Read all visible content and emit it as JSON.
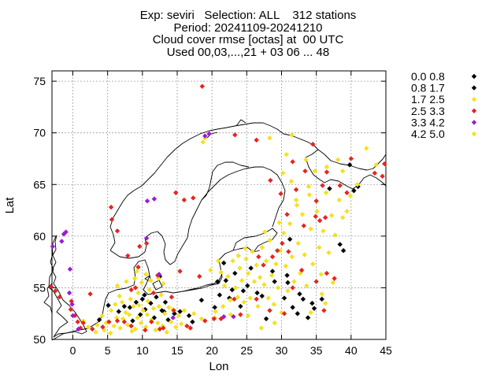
{
  "chart_data": {
    "type": "scatter",
    "title_lines": [
      "Exp: seviri   Selection: ALL    312 stations",
      "Period: 20241109-20241210",
      "Cloud cover rmse [octas] at  00 UTC",
      "Used 00,03,...,21 + 03 06 ... 48"
    ],
    "xlabel": "Lon",
    "ylabel": "Lat",
    "xlim": [
      -3,
      45
    ],
    "ylim": [
      50,
      76
    ],
    "xticks": [
      0,
      5,
      10,
      15,
      20,
      25,
      30,
      35,
      40,
      45
    ],
    "yticks": [
      50,
      55,
      60,
      65,
      70,
      75
    ],
    "grid": true,
    "legend_position": "top-right outside plot",
    "series": [
      {
        "name": "0.0 0.8",
        "color": "#000000",
        "points": [
          [
            5.1,
            53.3
          ],
          [
            8.2,
            53.1
          ],
          [
            9.1,
            53.6
          ],
          [
            10.0,
            53.9
          ],
          [
            10.4,
            52.9
          ],
          [
            11.2,
            53.5
          ],
          [
            11.7,
            52.1
          ],
          [
            12.8,
            52.8
          ],
          [
            13.3,
            53.6
          ],
          [
            13.7,
            51.9
          ],
          [
            14.6,
            52.5
          ],
          [
            20.8,
            55.6
          ],
          [
            21.1,
            54.3
          ],
          [
            22.9,
            54.8
          ],
          [
            24.5,
            54.7
          ],
          [
            25.6,
            56.9
          ],
          [
            27.2,
            54.2
          ],
          [
            29.0,
            55.6
          ],
          [
            30.4,
            54.0
          ],
          [
            31.6,
            53.1
          ],
          [
            32.6,
            54.4
          ],
          [
            33.1,
            53.9
          ],
          [
            34.4,
            53.5
          ],
          [
            34.7,
            53.0
          ],
          [
            38.9,
            58.6
          ],
          [
            39.8,
            66.9
          ],
          [
            40.4,
            64.4
          ],
          [
            36.9,
            64.6
          ],
          [
            30.8,
            56.2
          ],
          [
            24.1,
            53.2
          ],
          [
            22.0,
            55.7
          ],
          [
            15.4,
            52.7
          ],
          [
            16.7,
            52.3
          ],
          [
            12.0,
            54.1
          ],
          [
            10.3,
            54.3
          ]
        ]
      },
      {
        "name": "0.8 1.7",
        "color": "#000000",
        "points": [
          [
            3.8,
            51.9
          ],
          [
            6.6,
            52.7
          ],
          [
            7.4,
            53.2
          ],
          [
            8.6,
            51.8
          ],
          [
            9.7,
            52.4
          ],
          [
            13.1,
            52.7
          ],
          [
            17.2,
            51.7
          ],
          [
            21.7,
            57.4
          ],
          [
            23.3,
            56.4
          ],
          [
            25.1,
            55.2
          ],
          [
            27.8,
            52.0
          ],
          [
            30.9,
            55.5
          ],
          [
            32.3,
            52.5
          ],
          [
            33.8,
            52.1
          ],
          [
            35.8,
            53.9
          ],
          [
            38.4,
            59.2
          ],
          [
            41.0,
            64.8
          ],
          [
            18.5,
            53.8
          ],
          [
            12.5,
            56.1
          ],
          [
            28.7,
            56.6
          ],
          [
            31.2,
            59.7
          ],
          [
            20.4,
            53.1
          ],
          [
            26.5,
            54.5
          ],
          [
            22.5,
            54.0
          ]
        ]
      },
      {
        "name": "1.7 2.5",
        "color": "#f5e11e",
        "points": [
          [
            1.5,
            51.8
          ],
          [
            2.2,
            51.2
          ],
          [
            3.3,
            50.7
          ],
          [
            3.5,
            51.4
          ],
          [
            4.2,
            52.3
          ],
          [
            4.5,
            50.9
          ],
          [
            4.8,
            51.6
          ],
          [
            5.5,
            52.8
          ],
          [
            5.4,
            50.6
          ],
          [
            5.9,
            51.3
          ],
          [
            6.3,
            52.1
          ],
          [
            6.1,
            53.4
          ],
          [
            6.8,
            51.1
          ],
          [
            7.1,
            53.6
          ],
          [
            6.7,
            54.2
          ],
          [
            7.2,
            52.0
          ],
          [
            7.6,
            52.6
          ],
          [
            7.9,
            51.4
          ],
          [
            8.3,
            53.9
          ],
          [
            8.1,
            52.4
          ],
          [
            8.7,
            53.2
          ],
          [
            8.5,
            50.8
          ],
          [
            9.0,
            51.0
          ],
          [
            9.3,
            52.1
          ],
          [
            9.5,
            53.3
          ],
          [
            9.4,
            54.5
          ],
          [
            9.8,
            51.6
          ],
          [
            10.1,
            52.8
          ],
          [
            10.5,
            51.2
          ],
          [
            10.8,
            53.7
          ],
          [
            10.7,
            52.4
          ],
          [
            11.0,
            54.8
          ],
          [
            11.3,
            51.9
          ],
          [
            11.6,
            53.0
          ],
          [
            11.9,
            50.9
          ],
          [
            12.2,
            51.6
          ],
          [
            12.4,
            53.2
          ],
          [
            12.7,
            54.3
          ],
          [
            12.9,
            51.3
          ],
          [
            13.2,
            52.5
          ],
          [
            13.5,
            50.7
          ],
          [
            13.8,
            53.1
          ],
          [
            14.1,
            51.7
          ],
          [
            14.4,
            52.9
          ],
          [
            14.8,
            51.2
          ],
          [
            15.2,
            52.3
          ],
          [
            15.6,
            51.5
          ],
          [
            16.0,
            52.8
          ],
          [
            17.4,
            52.5
          ],
          [
            6.4,
            55.2
          ],
          [
            7.7,
            55.6
          ],
          [
            8.9,
            55.9
          ],
          [
            9.9,
            55.5
          ],
          [
            10.5,
            56.3
          ],
          [
            11.2,
            55.7
          ],
          [
            12.3,
            55.9
          ],
          [
            9.2,
            56.6
          ],
          [
            13.0,
            55.4
          ],
          [
            19.0,
            69.5
          ],
          [
            18.7,
            69.1
          ],
          [
            21.3,
            56.5
          ],
          [
            21.8,
            55.2
          ],
          [
            22.3,
            56.1
          ],
          [
            22.6,
            53.8
          ],
          [
            23.0,
            57.6
          ],
          [
            23.4,
            55.0
          ],
          [
            23.7,
            54.1
          ],
          [
            24.0,
            56.9
          ],
          [
            24.3,
            55.7
          ],
          [
            24.6,
            53.6
          ],
          [
            24.9,
            57.8
          ],
          [
            25.2,
            56.4
          ],
          [
            25.5,
            54.0
          ],
          [
            25.8,
            58.5
          ],
          [
            26.1,
            55.6
          ],
          [
            26.4,
            57.2
          ],
          [
            26.6,
            53.2
          ],
          [
            26.9,
            56.0
          ],
          [
            27.2,
            58.9
          ],
          [
            27.5,
            55.3
          ],
          [
            27.8,
            57.6
          ],
          [
            28.1,
            54.0
          ],
          [
            28.3,
            59.6
          ],
          [
            28.6,
            56.2
          ],
          [
            28.9,
            53.4
          ],
          [
            29.2,
            57.3
          ],
          [
            29.5,
            55.0
          ],
          [
            29.8,
            58.6
          ],
          [
            30.0,
            52.6
          ],
          [
            30.3,
            60.3
          ],
          [
            30.6,
            57.1
          ],
          [
            30.9,
            54.7
          ],
          [
            31.2,
            61.2
          ],
          [
            31.5,
            58.0
          ],
          [
            31.8,
            55.6
          ],
          [
            32.1,
            63.5
          ],
          [
            32.4,
            59.3
          ],
          [
            32.7,
            56.4
          ],
          [
            33.0,
            62.1
          ],
          [
            33.3,
            58.2
          ],
          [
            33.6,
            55.2
          ],
          [
            33.9,
            64.8
          ],
          [
            34.2,
            60.7
          ],
          [
            34.5,
            57.3
          ],
          [
            34.8,
            66.3
          ],
          [
            35.1,
            62.4
          ],
          [
            35.4,
            58.9
          ],
          [
            35.7,
            56.3
          ],
          [
            36.0,
            60.5
          ],
          [
            36.4,
            64.2
          ],
          [
            36.8,
            58.4
          ],
          [
            37.2,
            62.0
          ],
          [
            37.7,
            60.1
          ],
          [
            38.3,
            63.5
          ],
          [
            38.8,
            61.8
          ],
          [
            39.4,
            62.4
          ],
          [
            39.9,
            63.9
          ],
          [
            40.9,
            65.0
          ],
          [
            28.3,
            69.5
          ],
          [
            31.5,
            69.8
          ],
          [
            33.5,
            67.4
          ],
          [
            36.5,
            66.7
          ],
          [
            38.8,
            66.3
          ],
          [
            42.2,
            68.5
          ],
          [
            43.6,
            66.9
          ],
          [
            35.8,
            54.4
          ],
          [
            34.2,
            52.6
          ],
          [
            29.0,
            51.6
          ],
          [
            27.1,
            51.1
          ],
          [
            25.2,
            52.3
          ],
          [
            22.7,
            52.4
          ],
          [
            20.4,
            52.1
          ],
          [
            18.5,
            52.0
          ],
          [
            37.4,
            55.5
          ],
          [
            36.3,
            53.5
          ]
        ]
      },
      {
        "name": "2.5 3.3",
        "color": "#e4261f",
        "points": [
          [
            18.6,
            74.5
          ],
          [
            23.3,
            69.8
          ],
          [
            26.4,
            69.3
          ],
          [
            28.4,
            65.4
          ],
          [
            29.9,
            64.1
          ],
          [
            31.6,
            67.2
          ],
          [
            32.1,
            64.5
          ],
          [
            33.4,
            66.3
          ],
          [
            34.5,
            68.9
          ],
          [
            35.9,
            64.9
          ],
          [
            35.0,
            63.4
          ],
          [
            36.3,
            61.8
          ],
          [
            36.5,
            66.2
          ],
          [
            38.4,
            64.9
          ],
          [
            39.4,
            64.2
          ],
          [
            40.0,
            67.5
          ],
          [
            43.4,
            66.1
          ],
          [
            44.5,
            65.8
          ],
          [
            44.8,
            67.0
          ],
          [
            17.3,
            63.7
          ],
          [
            16.0,
            63.5
          ],
          [
            14.8,
            64.2
          ],
          [
            5.5,
            62.8
          ],
          [
            5.6,
            61.6
          ],
          [
            6.4,
            60.5
          ],
          [
            9.6,
            59.0
          ],
          [
            10.6,
            59.3
          ],
          [
            7.9,
            58.1
          ],
          [
            9.4,
            57.0
          ],
          [
            12.2,
            56.2
          ],
          [
            15.4,
            56.6
          ],
          [
            18.2,
            56.1
          ],
          [
            9.0,
            55.0
          ],
          [
            8.4,
            54.8
          ],
          [
            11.6,
            54.5
          ],
          [
            14.2,
            54.1
          ],
          [
            14.5,
            52.8
          ],
          [
            16.4,
            51.3
          ],
          [
            16.9,
            51.1
          ],
          [
            19.0,
            51.8
          ],
          [
            20.3,
            52.0
          ],
          [
            21.3,
            52.0
          ],
          [
            24.1,
            52.4
          ],
          [
            23.2,
            53.9
          ],
          [
            26.7,
            58.0
          ],
          [
            27.4,
            57.2
          ],
          [
            28.7,
            58.0
          ],
          [
            29.4,
            58.6
          ],
          [
            30.1,
            59.3
          ],
          [
            31.0,
            58.5
          ],
          [
            30.8,
            62.1
          ],
          [
            33.2,
            61.0
          ],
          [
            34.9,
            61.9
          ],
          [
            35.5,
            61.5
          ],
          [
            36.5,
            56.4
          ],
          [
            35.0,
            55.6
          ],
          [
            32.9,
            56.7
          ],
          [
            31.6,
            55.0
          ],
          [
            30.4,
            52.5
          ],
          [
            28.3,
            52.8
          ],
          [
            26.4,
            53.9
          ],
          [
            -3.1,
            55.1
          ],
          [
            -2.5,
            54.7
          ],
          [
            -1.9,
            54.1
          ],
          [
            -0.2,
            53.7
          ],
          [
            -0.3,
            52.9
          ],
          [
            0.3,
            52.3
          ],
          [
            0.7,
            51.7
          ],
          [
            1.1,
            51.1
          ],
          [
            1.5,
            51.6
          ],
          [
            2.8,
            51.0
          ],
          [
            2.5,
            54.4
          ],
          [
            5.2,
            51.7
          ],
          [
            6.4,
            51.8
          ],
          [
            8.4,
            51.3
          ],
          [
            10.4,
            50.9
          ],
          [
            11.3,
            51.7
          ],
          [
            12.5,
            51.0
          ],
          [
            13.0,
            51.1
          ],
          [
            4.3,
            51.2
          ],
          [
            7.4,
            51.7
          ],
          [
            37.6,
            55.9
          ],
          [
            36.1,
            52.8
          ]
        ]
      },
      {
        "name": "3.3 4.2",
        "color": "#9b1bd6",
        "points": [
          [
            19.0,
            69.7
          ],
          [
            19.6,
            69.9
          ],
          [
            11.7,
            63.6
          ],
          [
            10.7,
            63.4
          ],
          [
            -1.0,
            60.4
          ],
          [
            -1.3,
            60.2
          ],
          [
            -1.6,
            59.5
          ],
          [
            -2.9,
            59.0
          ],
          [
            -0.4,
            56.8
          ],
          [
            -0.5,
            54.5
          ],
          [
            -0.1,
            53.4
          ],
          [
            0.0,
            52.3
          ],
          [
            0.8,
            51.0
          ],
          [
            14.4,
            52.1
          ],
          [
            21.7,
            52.2
          ],
          [
            23.1,
            52.2
          ],
          [
            12.4,
            56.3
          ],
          [
            10.6,
            59.8
          ]
        ]
      },
      {
        "name": "4.2 5.0",
        "color": "#f5e11e",
        "points": [
          [
            20.5,
            52.7
          ],
          [
            21.6,
            53.2
          ],
          [
            19.8,
            56.7
          ],
          [
            20.9,
            57.6
          ],
          [
            23.8,
            58.1
          ],
          [
            24.8,
            58.8
          ],
          [
            27.6,
            60.4
          ],
          [
            29.7,
            61.3
          ],
          [
            32.2,
            63.0
          ],
          [
            34.0,
            64.0
          ],
          [
            38.1,
            67.4
          ],
          [
            30.7,
            67.9
          ],
          [
            31.4,
            65.3
          ],
          [
            30.2,
            66.1
          ]
        ]
      }
    ]
  }
}
